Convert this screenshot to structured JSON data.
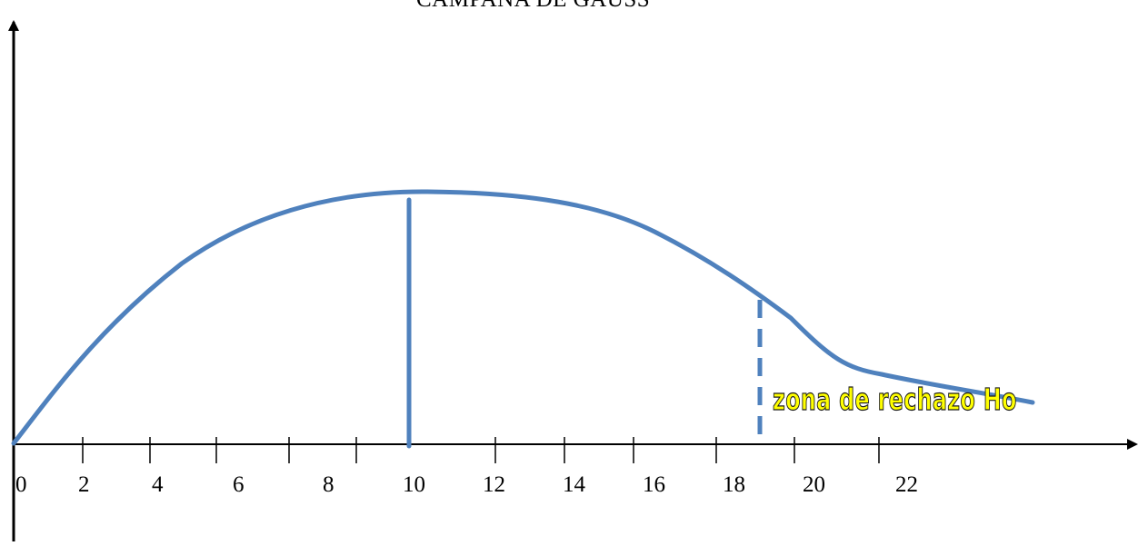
{
  "title": "CAMPANA DE GAUSS",
  "zone_label": "zona de rechazo Ho",
  "x_tick_labels": [
    "0",
    "2",
    "4",
    "6",
    "8",
    "10",
    "12",
    "14",
    "16",
    "18",
    "20",
    "22"
  ],
  "colors": {
    "curve": "#4f81bd",
    "axes": "#000000",
    "zone_label_fill": "#ffff00",
    "zone_label_stroke": "#1a1a1a"
  }
}
